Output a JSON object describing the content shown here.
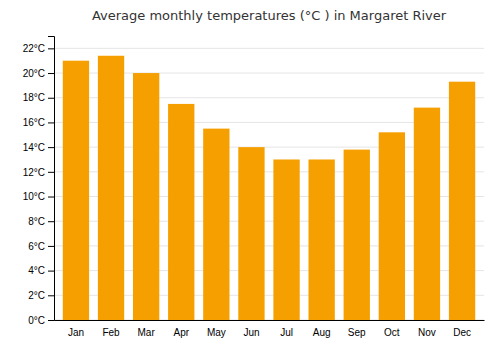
{
  "chart_data": {
    "type": "bar",
    "title": "Average monthly temperatures (°C ) in Margaret River",
    "categories": [
      "Jan",
      "Feb",
      "Mar",
      "Apr",
      "May",
      "Jun",
      "Jul",
      "Aug",
      "Sep",
      "Oct",
      "Nov",
      "Dec"
    ],
    "values": [
      21.0,
      21.4,
      20.0,
      17.5,
      15.5,
      14.0,
      13.0,
      13.0,
      13.8,
      15.2,
      17.2,
      19.3
    ],
    "color": "#F5A000",
    "ylim": [
      0,
      23
    ],
    "yticks": [
      {
        "value": 0,
        "label": "0°C"
      },
      {
        "value": 2,
        "label": "2°C"
      },
      {
        "value": 4,
        "label": "4°C"
      },
      {
        "value": 6,
        "label": "6°C"
      },
      {
        "value": 8,
        "label": "8°C"
      },
      {
        "value": 10,
        "label": "10°C"
      },
      {
        "value": 12,
        "label": "12°C"
      },
      {
        "value": 14,
        "label": "14°C"
      },
      {
        "value": 16,
        "label": "16°C"
      },
      {
        "value": 18,
        "label": "18°C"
      },
      {
        "value": 20,
        "label": "20°C"
      },
      {
        "value": 22,
        "label": "22°C"
      }
    ],
    "grid": true
  }
}
